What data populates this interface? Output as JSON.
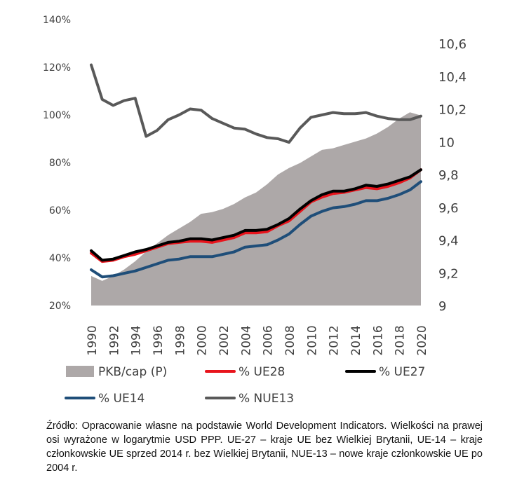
{
  "chart_data": {
    "type": "area+line",
    "x": [
      1990,
      1991,
      1992,
      1993,
      1994,
      1995,
      1996,
      1997,
      1998,
      1999,
      2000,
      2001,
      2002,
      2003,
      2004,
      2005,
      2006,
      2007,
      2008,
      2009,
      2010,
      2011,
      2012,
      2013,
      2014,
      2015,
      2016,
      2017,
      2018,
      2019,
      2020
    ],
    "x_tick_labels": [
      "1990",
      "1992",
      "1994",
      "1996",
      "1998",
      "2000",
      "2002",
      "2004",
      "2006",
      "2008",
      "2010",
      "2012",
      "2014",
      "2016",
      "2018",
      "2020"
    ],
    "left_axis": {
      "range": [
        20,
        140
      ],
      "ticks": [
        "20%",
        "40%",
        "60%",
        "80%",
        "100%",
        "120%",
        "140%"
      ]
    },
    "right_axis": {
      "range": [
        9,
        10.6
      ],
      "ticks": [
        "9",
        "9,2",
        "9,4",
        "9,6",
        "9,8",
        "10",
        "10,2",
        "10,4",
        "10,6"
      ]
    },
    "series": [
      {
        "name": "PKB/cap (P)",
        "type": "area",
        "axis": "right",
        "color": "#ada8a8",
        "values": [
          9.18,
          9.15,
          9.18,
          9.22,
          9.27,
          9.33,
          9.38,
          9.43,
          9.47,
          9.51,
          9.56,
          9.57,
          9.59,
          9.62,
          9.66,
          9.69,
          9.74,
          9.8,
          9.84,
          9.87,
          9.91,
          9.95,
          9.96,
          9.98,
          10.0,
          10.02,
          10.05,
          10.09,
          10.14,
          10.18,
          10.16
        ]
      },
      {
        "name": "% UE28",
        "type": "line",
        "axis": "left",
        "color": "#e8141c",
        "values": [
          42,
          38.5,
          39,
          40.5,
          41.5,
          43,
          44.5,
          46,
          46.5,
          47,
          47,
          46.5,
          47.5,
          48.5,
          50.5,
          50.5,
          51,
          53.5,
          55.5,
          59.5,
          63.5,
          65.5,
          67,
          67.5,
          68.5,
          69.5,
          69,
          70,
          71.5,
          73.5,
          77
        ]
      },
      {
        "name": "% UE27",
        "type": "line",
        "axis": "left",
        "color": "#000000",
        "values": [
          43,
          39,
          39.5,
          41,
          42.5,
          43.5,
          45,
          46.5,
          47,
          48,
          48,
          47.5,
          48.5,
          49.5,
          51.5,
          51.5,
          52,
          54,
          56.5,
          60.5,
          64,
          66.5,
          68,
          68,
          69,
          70.5,
          70,
          71,
          72.5,
          74,
          77
        ]
      },
      {
        "name": "% UE14",
        "type": "line",
        "axis": "left",
        "color": "#1f4e79",
        "values": [
          35,
          32,
          32.5,
          33.5,
          34.5,
          36,
          37.5,
          39,
          39.5,
          40.5,
          40.5,
          40.5,
          41.5,
          42.5,
          44.5,
          45,
          45.5,
          47.5,
          50,
          54,
          57.5,
          59.5,
          61,
          61.5,
          62.5,
          64,
          64,
          65,
          66.5,
          68.5,
          72
        ]
      },
      {
        "name": "% NUE13",
        "type": "line",
        "axis": "left",
        "color": "#595959",
        "values": [
          121,
          106.5,
          104,
          106,
          107,
          91,
          93.5,
          98,
          100,
          102.5,
          102,
          98.5,
          96.5,
          94.5,
          94,
          92,
          90.5,
          90,
          88.5,
          94.5,
          99,
          100,
          101,
          100.5,
          100.5,
          101,
          99.5,
          98.5,
          98,
          98,
          99.5
        ]
      }
    ],
    "legend": {
      "placement": "bottom",
      "entries": [
        "PKB/cap (P)",
        "% UE28",
        "% UE27",
        "% UE14",
        "% NUE13"
      ]
    }
  },
  "source_note": "Źródło: Opracowanie własne na podstawie World Development Indicators. Wielkości na prawej osi wyrażone w logarytmie USD PPP. UE-27 – kraje UE bez Wielkiej Brytanii, UE-14 – kraje członkowskie UE sprzed 2014 r. bez Wielkiej Brytanii, NUE-13 – nowe kraje członkowskie UE po 2004 r."
}
